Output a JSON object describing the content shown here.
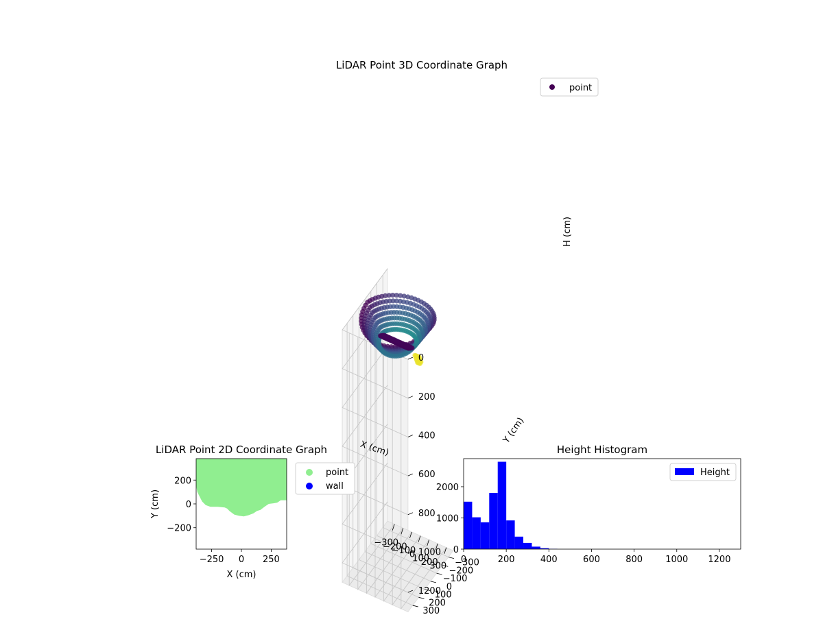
{
  "chart_data": [
    {
      "type": "scatter",
      "projection": "3d",
      "title": "LiDAR Point 3D Coordinate Graph",
      "xlabel": "X (cm)",
      "ylabel": "Y (cm)",
      "zlabel": "H (cm)",
      "xlim": [
        -380,
        380
      ],
      "ylim": [
        -380,
        380
      ],
      "zlim": [
        1300,
        0
      ],
      "xticks": [
        "−300",
        "−200",
        "−100",
        "0",
        "100",
        "200",
        "300"
      ],
      "yticks": [
        "−300",
        "−200",
        "−100",
        "0",
        "100",
        "200",
        "300"
      ],
      "zticks": [
        "0",
        "200",
        "400",
        "600",
        "800",
        "1000",
        "1200"
      ],
      "zticks_values": [
        0,
        200,
        400,
        600,
        800,
        1000,
        1200
      ],
      "colormap": "viridis",
      "grid": true,
      "legend": {
        "placement": "top-right",
        "entries": [
          {
            "label": "point",
            "color": "#440154"
          }
        ]
      },
      "series": [
        {
          "name": "point",
          "description_points": [
            {
              "x": -300,
              "y": 300,
              "h": 0
            },
            {
              "x": 0,
              "y": 350,
              "h": 0
            },
            {
              "x": 300,
              "y": 300,
              "h": 0
            },
            {
              "x": 350,
              "y": 0,
              "h": 20
            },
            {
              "x": -350,
              "y": 0,
              "h": 20
            },
            {
              "x": -250,
              "y": -50,
              "h": 150
            },
            {
              "x": 0,
              "y": -60,
              "h": 200
            },
            {
              "x": 150,
              "y": -100,
              "h": 230
            },
            {
              "x": 50,
              "y": -250,
              "h": 330
            },
            {
              "x": 80,
              "y": -280,
              "h": 360
            }
          ]
        }
      ]
    },
    {
      "type": "scatter",
      "title": "LiDAR Point 2D Coordinate Graph",
      "xlabel": "X (cm)",
      "ylabel": "Y (cm)",
      "xlim": [
        -380,
        380
      ],
      "ylim": [
        -380,
        380
      ],
      "xticks": [
        "−250",
        "0",
        "250"
      ],
      "xticks_values": [
        -250,
        0,
        250
      ],
      "yticks": [
        "−200",
        "0",
        "200"
      ],
      "yticks_values": [
        -200,
        0,
        200
      ],
      "legend": {
        "placement": "outside-right",
        "entries": [
          {
            "label": "point",
            "color": "#90ee90"
          },
          {
            "label": "wall",
            "color": "#0000ff"
          }
        ]
      },
      "series": [
        {
          "name": "point",
          "color": "#90ee90",
          "boundary": [
            [
              -380,
              380
            ],
            [
              380,
              380
            ],
            [
              380,
              30
            ],
            [
              330,
              30
            ],
            [
              300,
              10
            ],
            [
              270,
              5
            ],
            [
              230,
              0
            ],
            [
              200,
              -20
            ],
            [
              160,
              -50
            ],
            [
              130,
              -60
            ],
            [
              100,
              -80
            ],
            [
              60,
              -95
            ],
            [
              20,
              -105
            ],
            [
              -20,
              -100
            ],
            [
              -60,
              -90
            ],
            [
              -100,
              -60
            ],
            [
              -120,
              -40
            ],
            [
              -140,
              -30
            ],
            [
              -200,
              -25
            ],
            [
              -260,
              -25
            ],
            [
              -300,
              -10
            ],
            [
              -330,
              20
            ],
            [
              -350,
              60
            ],
            [
              -370,
              100
            ],
            [
              -380,
              150
            ]
          ]
        },
        {
          "name": "wall",
          "color": "#0000ff",
          "values": []
        }
      ]
    },
    {
      "type": "bar",
      "title": "Height Histogram",
      "xlim": [
        0,
        1300
      ],
      "ylim": [
        0,
        2900
      ],
      "xticks": [
        "0",
        "200",
        "400",
        "600",
        "800",
        "1000",
        "1200"
      ],
      "xticks_values": [
        0,
        200,
        400,
        600,
        800,
        1000,
        1200
      ],
      "yticks": [
        "0",
        "1000",
        "2000"
      ],
      "yticks_values": [
        0,
        1000,
        2000
      ],
      "legend": {
        "placement": "top-right",
        "entries": [
          {
            "label": "Height",
            "color": "#0000ff"
          }
        ]
      },
      "series": [
        {
          "name": "Height",
          "color": "#0000ff",
          "bin_width": 40,
          "bins": [
            0,
            40,
            80,
            120,
            160,
            200,
            240,
            280,
            320,
            360,
            400
          ],
          "values": [
            1520,
            1020,
            860,
            1800,
            2800,
            920,
            400,
            200,
            80,
            30,
            10
          ]
        }
      ]
    }
  ]
}
